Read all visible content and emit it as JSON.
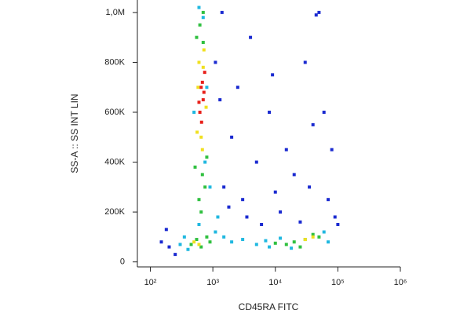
{
  "chart_data": {
    "type": "scatter",
    "x_label": "CD45RA FITC",
    "y_label": "SS-A :: SS INT LIN",
    "x_scale": "log",
    "xlim": [
      62,
      1000000
    ],
    "ylim": [
      -20000,
      1050000
    ],
    "xticks": [
      {
        "value": 100,
        "label": "10²"
      },
      {
        "value": 1000,
        "label": "10³"
      },
      {
        "value": 10000,
        "label": "10⁴"
      },
      {
        "value": 100000,
        "label": "10⁵"
      },
      {
        "value": 1000000,
        "label": "10⁶"
      }
    ],
    "yticks": [
      0,
      {
        "value": 200000,
        "label": "200K"
      },
      {
        "value": 400000,
        "label": "400K"
      },
      {
        "value": 600000,
        "label": "600K"
      },
      {
        "value": 800000,
        "label": "800K"
      },
      {
        "value": 1000000,
        "label": "1,0M"
      }
    ],
    "grid": false,
    "series": [
      {
        "color": "#1a2ad0",
        "x": [
          1500,
          2000,
          3000,
          5000,
          8000,
          12000,
          20000,
          30000,
          50000,
          70000,
          90000,
          2500,
          4000,
          6000,
          15000,
          40000,
          1300,
          1800,
          3500,
          10000,
          25000,
          45000,
          60000,
          200,
          250,
          180,
          1100,
          1400,
          9000,
          35000,
          80000,
          100000,
          150
        ],
        "values": [
          300000,
          500000,
          250000,
          400000,
          600000,
          200000,
          350000,
          800000,
          1000000,
          250000,
          180000,
          700000,
          900000,
          150000,
          450000,
          550000,
          650000,
          220000,
          180000,
          280000,
          160000,
          990000,
          600000,
          60000,
          30000,
          130000,
          800000,
          1000000,
          750000,
          300000,
          450000,
          150000,
          80000
        ]
      },
      {
        "color": "#20b8e0",
        "x": [
          500,
          800,
          900,
          600,
          700,
          1100,
          1500,
          2000,
          3000,
          5000,
          7000,
          8000,
          12000,
          18000,
          60000,
          70000,
          400,
          350,
          300,
          1200,
          600,
          750
        ],
        "values": [
          600000,
          700000,
          300000,
          150000,
          980000,
          120000,
          100000,
          80000,
          90000,
          70000,
          85000,
          60000,
          95000,
          55000,
          120000,
          80000,
          50000,
          100000,
          70000,
          180000,
          1020000,
          400000
        ]
      },
      {
        "color": "#30c040",
        "x": [
          550,
          620,
          700,
          800,
          520,
          680,
          750,
          600,
          650,
          700,
          450,
          550,
          650,
          800,
          900,
          15000,
          20000,
          30000,
          40000,
          50000,
          25000,
          10000
        ],
        "values": [
          900000,
          950000,
          880000,
          420000,
          380000,
          350000,
          300000,
          250000,
          200000,
          1000000,
          70000,
          90000,
          60000,
          100000,
          80000,
          70000,
          80000,
          90000,
          110000,
          100000,
          60000,
          75000
        ]
      },
      {
        "color": "#f0e020",
        "x": [
          600,
          700,
          560,
          780,
          650,
          720,
          580,
          680,
          500,
          600,
          30000,
          40000
        ],
        "values": [
          800000,
          780000,
          520000,
          620000,
          500000,
          850000,
          700000,
          450000,
          80000,
          70000,
          90000,
          100000
        ]
      },
      {
        "color": "#e8201a",
        "x": [
          650,
          700,
          620,
          680,
          720,
          660,
          600,
          740
        ],
        "values": [
          700000,
          650000,
          600000,
          720000,
          680000,
          560000,
          640000,
          760000
        ]
      }
    ]
  }
}
